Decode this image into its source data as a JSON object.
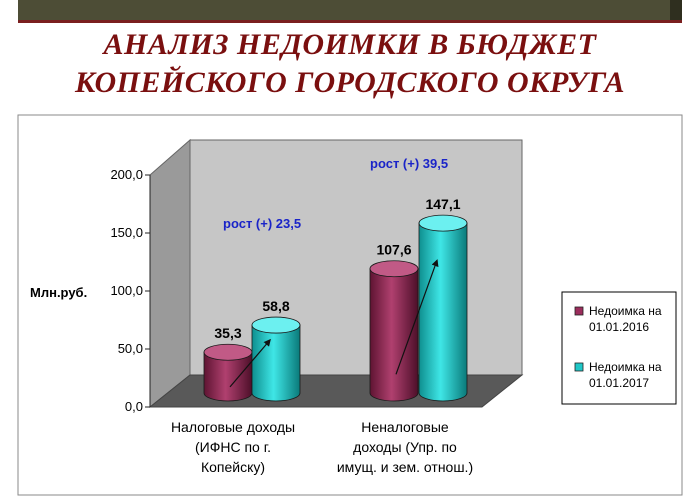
{
  "title": {
    "line1": "АНАЛИЗ НЕДОИМКИ В БЮДЖЕТ",
    "line2": "КОПЕЙСКОГО ГОРОДСКОГО ОКРУГА"
  },
  "colors": {
    "title": "#7a0f0f",
    "top_bar": "#4d4d36",
    "series1": "#9b2d5c",
    "series2": "#1fc7c7",
    "growth_text": "#1a24c8"
  },
  "chart_data": {
    "type": "bar",
    "style": "3d-cylinder",
    "ylabel": "Млн.руб.",
    "ylim": [
      0,
      200
    ],
    "yticks": [
      "0,0",
      "50,0",
      "100,0",
      "150,0",
      "200,0"
    ],
    "grid": false,
    "legend_position": "right",
    "categories": [
      [
        "Налоговые доходы",
        "(ИФНС по г.",
        "Копейску)"
      ],
      [
        "Неналоговые",
        "доходы (Упр. по",
        "имущ. и зем. отнош.)"
      ]
    ],
    "series": [
      {
        "name": "Недоимка на 01.01.2016",
        "legend_lines": [
          "Недоимка на",
          "01.01.2016"
        ],
        "values": [
          35.3,
          107.6
        ],
        "labels": [
          "35,3",
          "107,6"
        ]
      },
      {
        "name": "Недоимка на 01.01.2017",
        "legend_lines": [
          "Недоимка на",
          "01.01.2017"
        ],
        "values": [
          58.8,
          147.1
        ],
        "labels": [
          "58,8",
          "147,1"
        ]
      }
    ],
    "annotations": [
      "рост (+) 23,5",
      "рост (+) 39,5"
    ]
  }
}
